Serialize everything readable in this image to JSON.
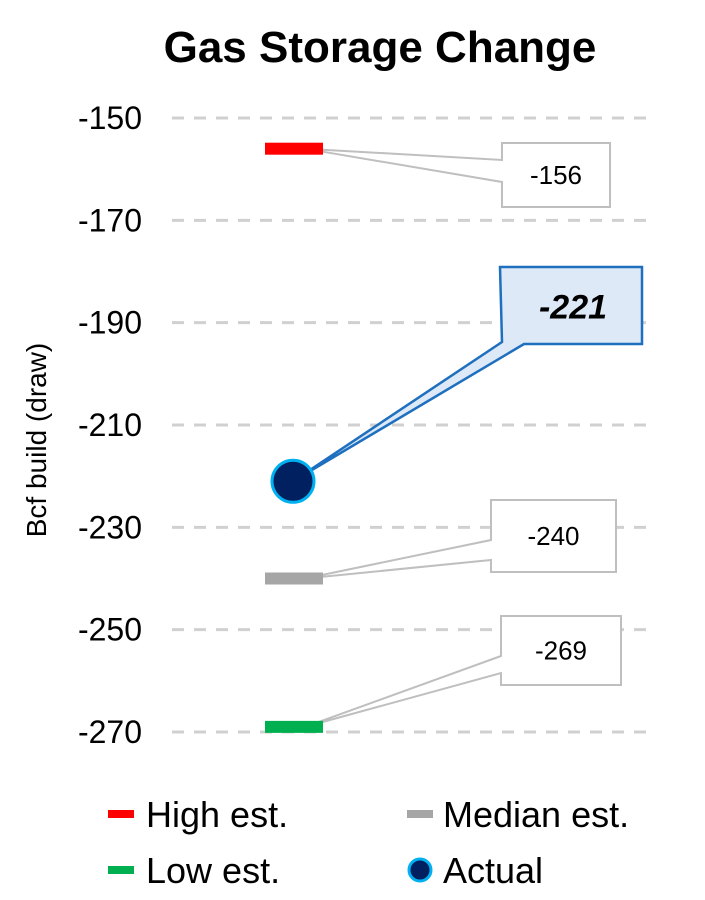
{
  "chart_data": {
    "type": "scatter",
    "title": "Gas Storage Change",
    "ylabel": "Bcf build (draw)",
    "ylim": [
      -275,
      -145
    ],
    "yticks": [
      -150,
      -170,
      -190,
      -210,
      -230,
      -250,
      -270
    ],
    "grid": true,
    "legend_position": "bottom",
    "series": [
      {
        "name": "High est.",
        "value": -156,
        "label": "-156",
        "marker": "dash",
        "color": "#ff0000"
      },
      {
        "name": "Median est.",
        "value": -240,
        "label": "-240",
        "marker": "dash",
        "color": "#a6a6a6"
      },
      {
        "name": "Low est.",
        "value": -269,
        "label": "-269",
        "marker": "dash",
        "color": "#00b050"
      },
      {
        "name": "Actual",
        "value": -221,
        "label": "-221",
        "marker": "circle",
        "color": "#002060",
        "edge_color": "#00b0f0",
        "highlight": true
      }
    ]
  }
}
